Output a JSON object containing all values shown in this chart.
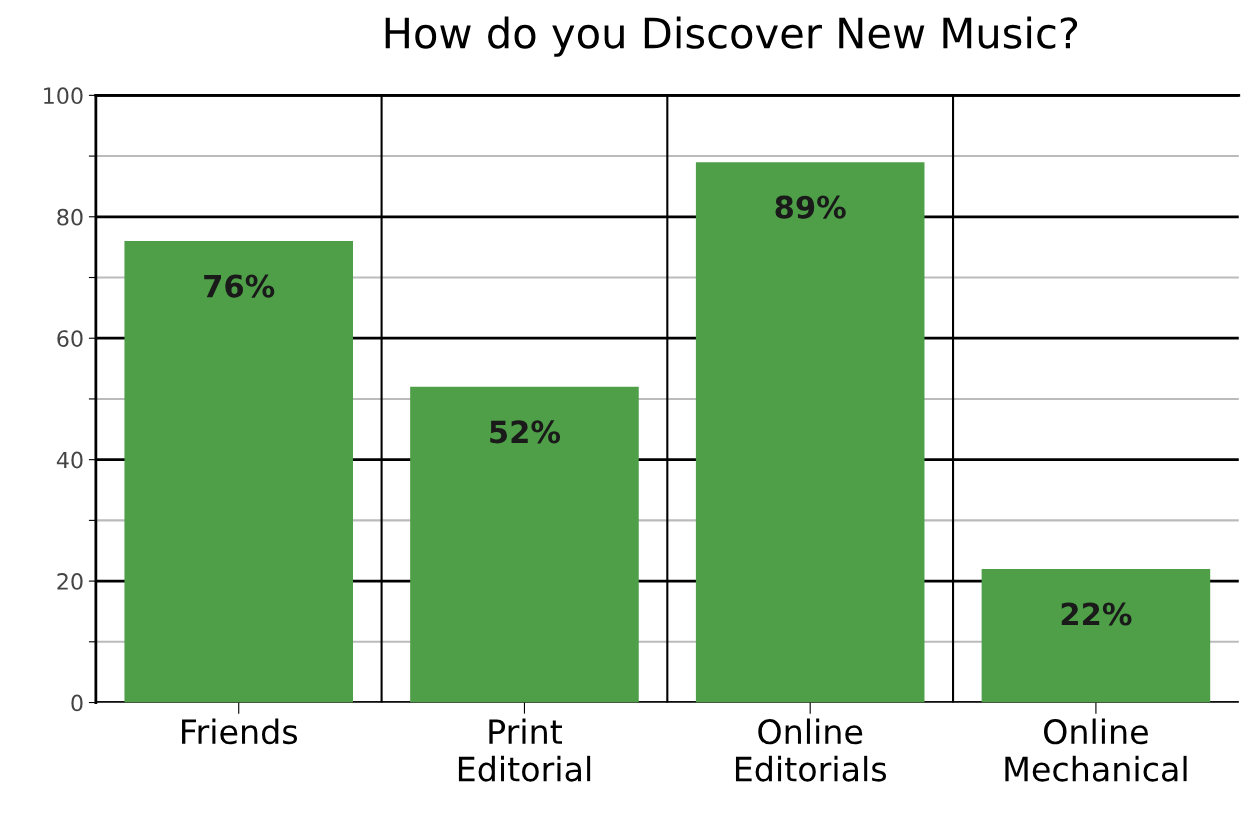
{
  "chart_data": {
    "type": "bar",
    "title": "How do you Discover New Music?",
    "categories": [
      "Friends",
      "Print\nEditorial",
      "Online\nEditorials",
      "Online\nMechanical"
    ],
    "values": [
      76,
      52,
      89,
      22
    ],
    "value_labels": [
      "76%",
      "52%",
      "89%",
      "22%"
    ],
    "color": "#4f9f48",
    "ylim": [
      0,
      100
    ],
    "yticks": [
      0,
      {
        "value": 10,
        "label": null
      },
      20,
      {
        "value": 30,
        "label": null
      },
      40,
      {
        "value": 50,
        "label": null
      },
      60,
      {
        "value": 70,
        "label": null
      },
      80,
      {
        "value": 90,
        "label": null
      },
      100
    ],
    "grid": true
  }
}
